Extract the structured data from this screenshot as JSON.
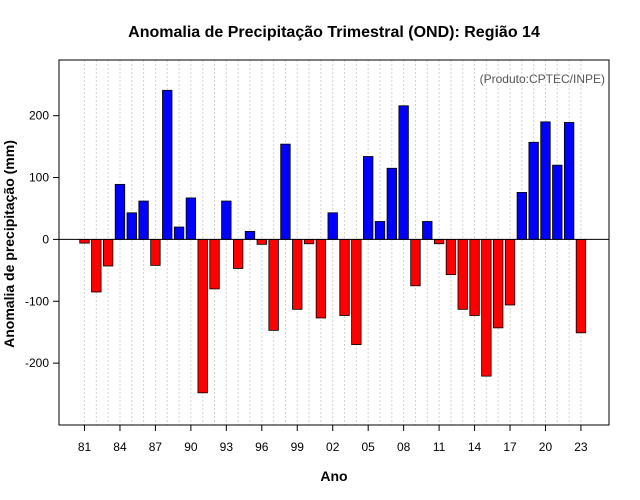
{
  "chart_data": {
    "type": "bar",
    "title": "Anomalia de Precipitação Trimestral (OND): Região 14",
    "subtitle": "(Produto:CPTEC/INPE)",
    "xlabel": "Ano",
    "ylabel": "Anomalia de precipitação (mm)",
    "ylim": [
      -300,
      290
    ],
    "yticks": [
      -200,
      -100,
      0,
      100,
      200
    ],
    "x_tick_years": [
      1981,
      1984,
      1987,
      1990,
      1993,
      1996,
      1999,
      2002,
      2005,
      2008,
      2011,
      2014,
      2017,
      2020,
      2023
    ],
    "x_tick_labels": [
      "81",
      "84",
      "87",
      "90",
      "93",
      "96",
      "99",
      "02",
      "05",
      "08",
      "11",
      "14",
      "17",
      "20",
      "23"
    ],
    "grid": true,
    "positive_color": "#0000FF",
    "negative_color": "#FF0000",
    "years": [
      1981,
      1982,
      1983,
      1984,
      1985,
      1986,
      1987,
      1988,
      1989,
      1990,
      1991,
      1992,
      1993,
      1994,
      1995,
      1996,
      1997,
      1998,
      1999,
      2000,
      2001,
      2002,
      2003,
      2004,
      2005,
      2006,
      2007,
      2008,
      2009,
      2010,
      2011,
      2012,
      2013,
      2014,
      2015,
      2016,
      2017,
      2018,
      2019,
      2020,
      2021,
      2022,
      2023
    ],
    "values": [
      -6,
      -85,
      -43,
      89,
      43,
      62,
      -42,
      241,
      20,
      67,
      -248,
      -80,
      62,
      -47,
      13,
      -8,
      -147,
      154,
      -113,
      -7,
      -127,
      43,
      -123,
      -170,
      134,
      29,
      115,
      216,
      -75,
      29,
      -7,
      -57,
      -113,
      -123,
      -221,
      -143,
      -106,
      76,
      157,
      190,
      120,
      189,
      -151
    ]
  }
}
